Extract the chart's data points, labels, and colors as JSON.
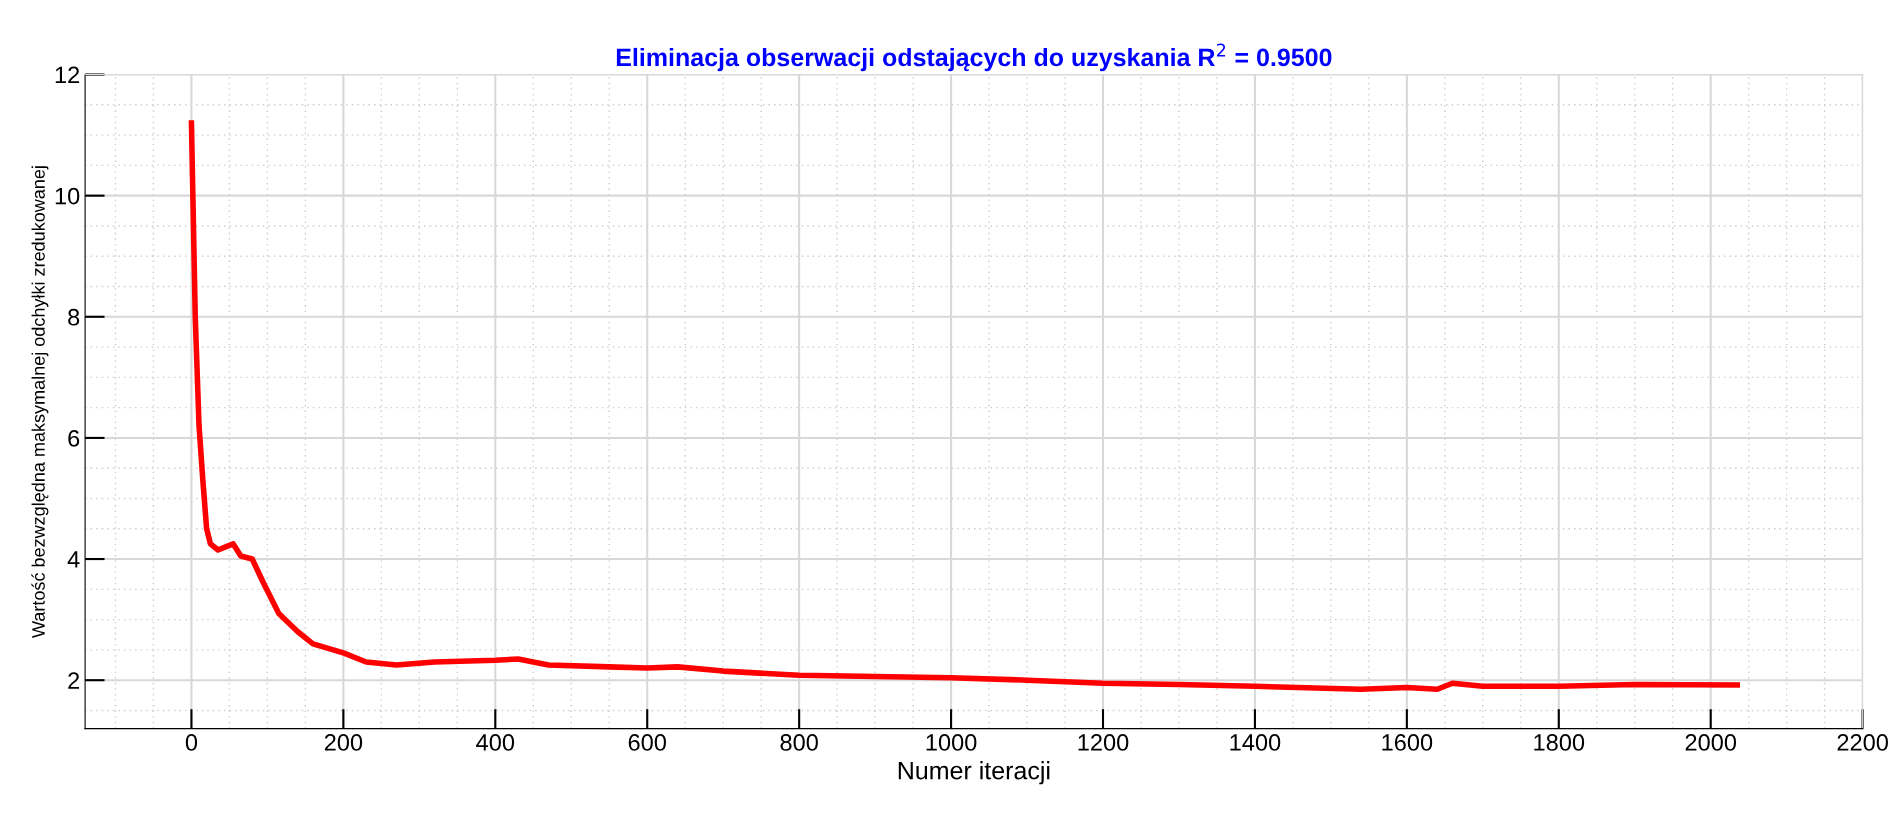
{
  "chart_data": {
    "type": "line",
    "title": "Eliminacja obserwacji odstających do uzyskania R$^{2}$ = 0.9500",
    "xlabel": "Numer iteracji",
    "ylabel": "Wartość bezwzględna maksymalnej odchyłki zredukowanej",
    "x": [
      0,
      5,
      10,
      15,
      20,
      25,
      35,
      45,
      55,
      65,
      80,
      95,
      115,
      140,
      160,
      200,
      230,
      270,
      320,
      400,
      430,
      470,
      550,
      600,
      640,
      700,
      800,
      900,
      1000,
      1100,
      1200,
      1300,
      1400,
      1540,
      1600,
      1640,
      1660,
      1700,
      1800,
      1900,
      2035
    ],
    "series": [
      {
        "color": "#ff0000",
        "values": [
          11.2,
          8,
          6.2,
          5.3,
          4.5,
          4.25,
          4.15,
          4.2,
          4.25,
          4.05,
          4.0,
          3.6,
          3.1,
          2.8,
          2.6,
          2.45,
          2.3,
          2.25,
          2.3,
          2.33,
          2.35,
          2.25,
          2.22,
          2.2,
          2.22,
          2.15,
          2.08,
          2.06,
          2.04,
          2.0,
          1.95,
          1.93,
          1.9,
          1.85,
          1.88,
          1.85,
          1.95,
          1.9,
          1.9,
          1.93,
          1.92
        ]
      }
    ],
    "xlim": [
      -140,
      2200
    ],
    "ylim": [
      1.2,
      12
    ],
    "xticks": [
      0,
      200,
      400,
      600,
      800,
      1000,
      1200,
      1400,
      1600,
      1800,
      2000,
      2200
    ],
    "yticks": [
      2,
      4,
      6,
      8,
      10,
      12
    ],
    "grid": true,
    "marker": "none",
    "line_style": "solid"
  }
}
